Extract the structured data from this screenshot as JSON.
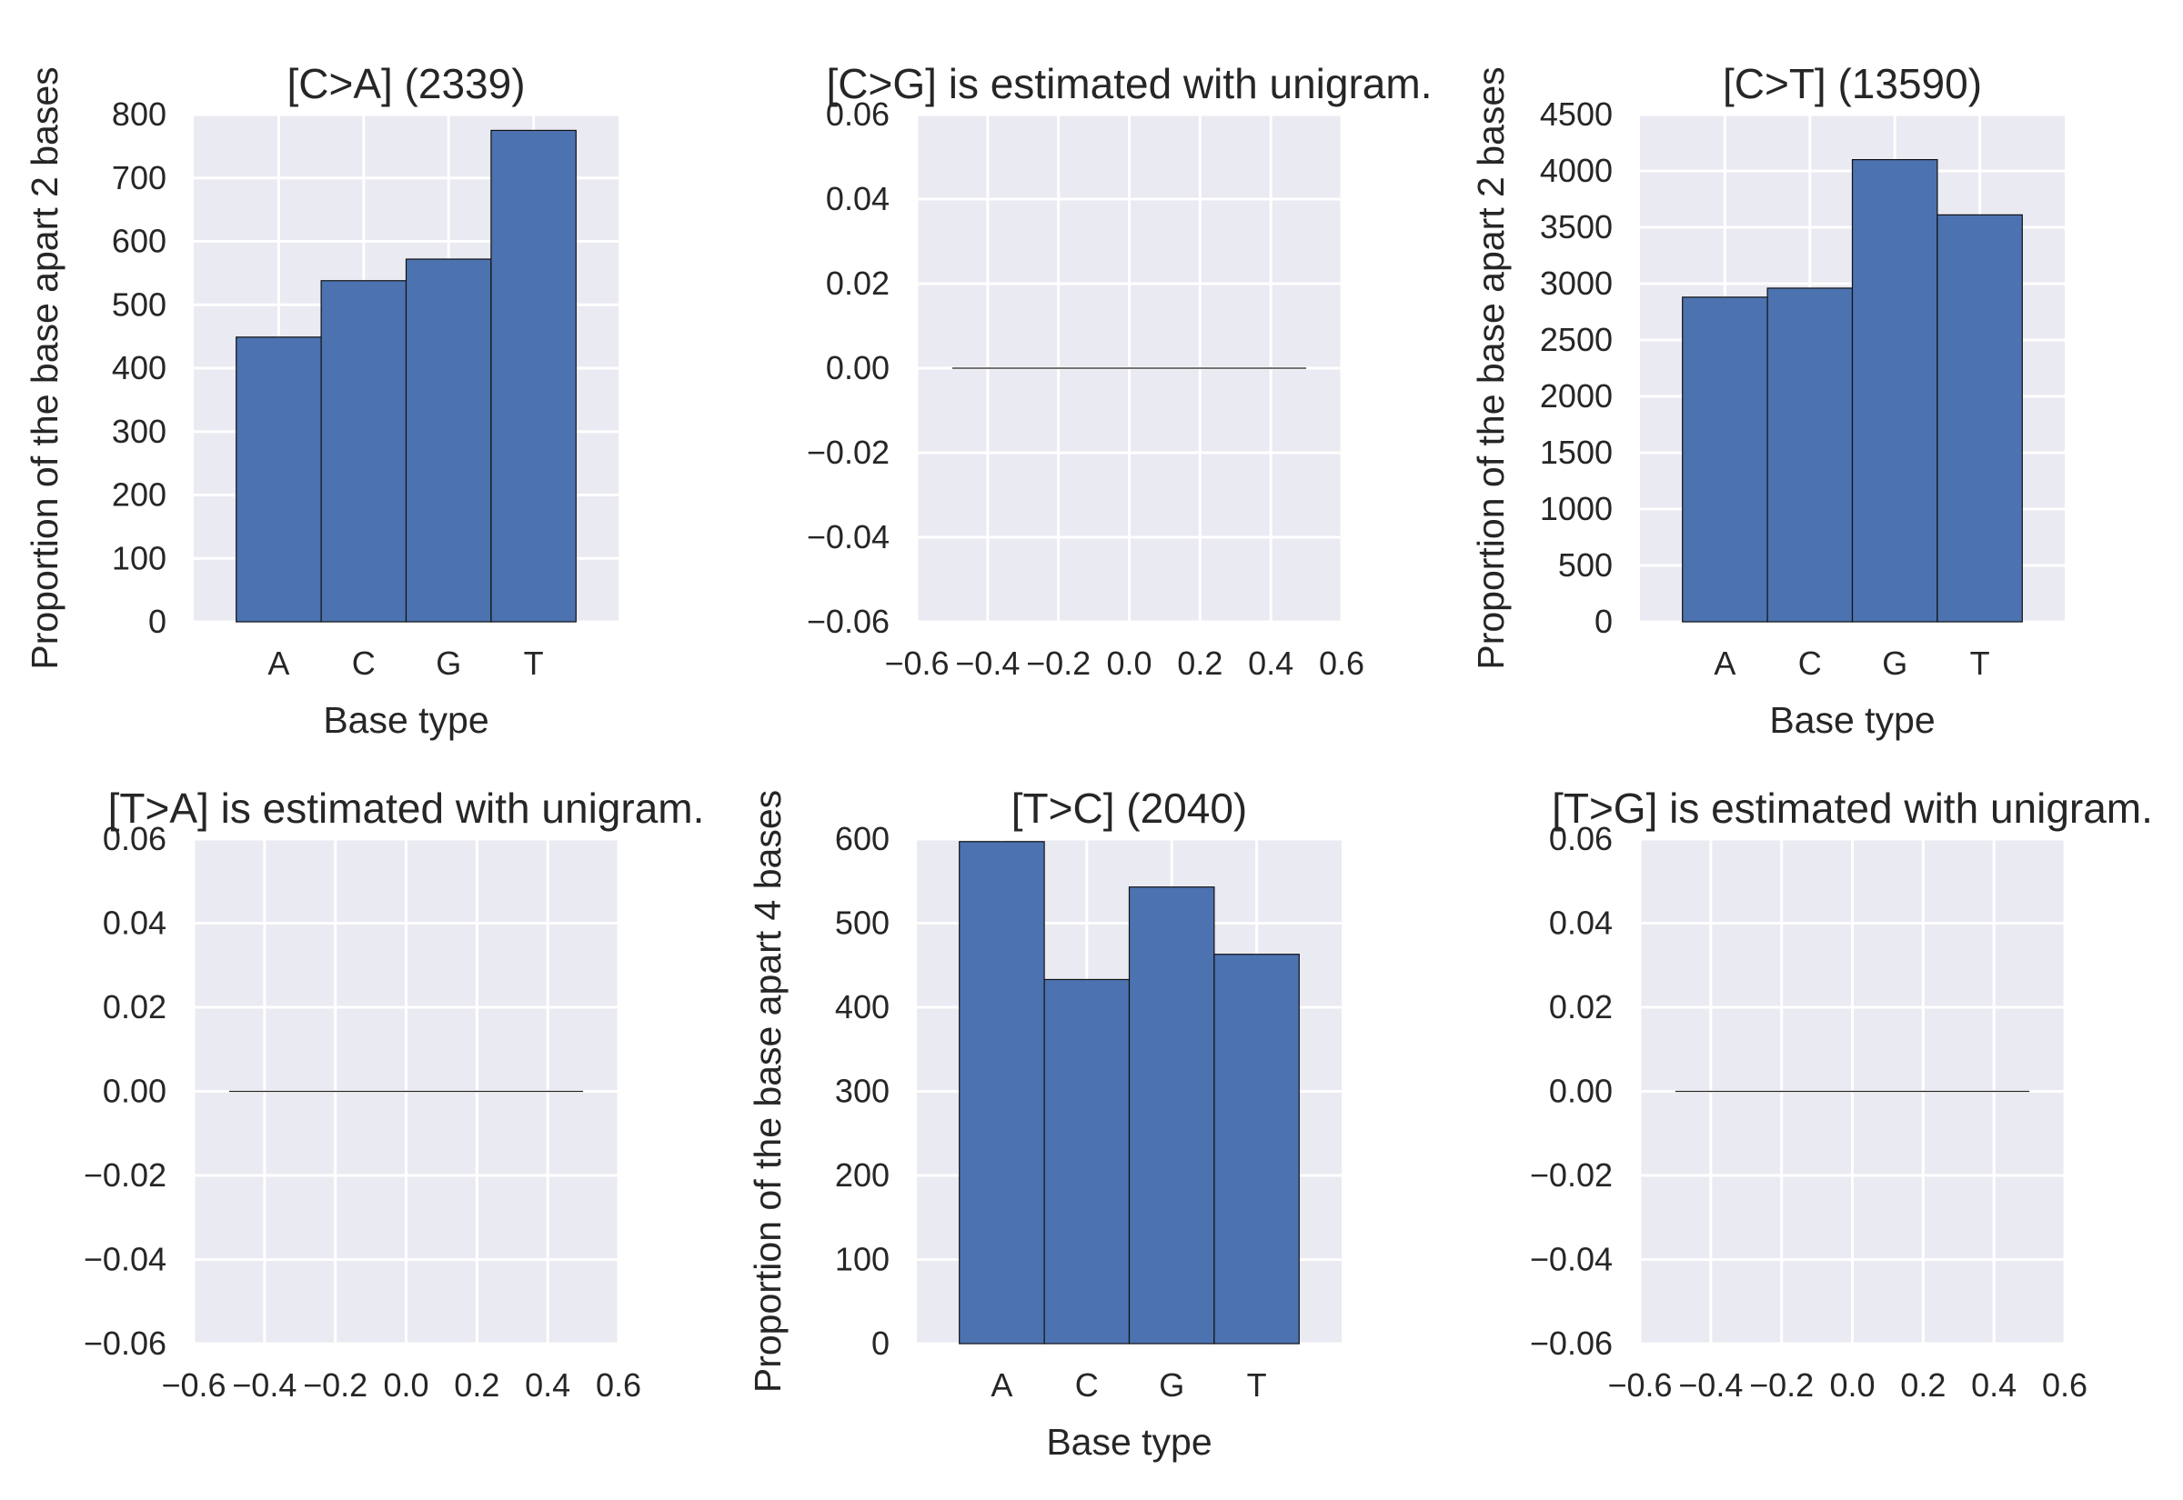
{
  "chart_data": [
    {
      "type": "bar",
      "title": "[C>A] (2339)",
      "categories": [
        "A",
        "C",
        "G",
        "T"
      ],
      "values": [
        449,
        538,
        572,
        775
      ],
      "xlabel": "Base type",
      "ylabel": "Proportion of the base apart 2 bases",
      "ylim": [
        0,
        800
      ],
      "yticks": [
        "0",
        "100",
        "200",
        "300",
        "400",
        "500",
        "600",
        "700",
        "800"
      ],
      "grid": true
    },
    {
      "type": "line",
      "title": "[C>G] is estimated with unigram.",
      "x": [
        -0.5,
        0.5
      ],
      "y": [
        0,
        0
      ],
      "xlim": [
        -0.6,
        0.6
      ],
      "ylim": [
        -0.06,
        0.06
      ],
      "xticks": [
        "−0.6",
        "−0.4",
        "−0.2",
        "0.0",
        "0.2",
        "0.4",
        "0.6"
      ],
      "yticks": [
        "−0.06",
        "−0.04",
        "−0.02",
        "0.00",
        "0.02",
        "0.04",
        "0.06"
      ],
      "xlabel": "",
      "ylabel": "",
      "grid": true
    },
    {
      "type": "bar",
      "title": "[C>T] (13590)",
      "categories": [
        "A",
        "C",
        "G",
        "T"
      ],
      "values": [
        2880,
        2960,
        4100,
        3610
      ],
      "xlabel": "Base type",
      "ylabel": "Proportion of the base apart 2 bases",
      "ylim": [
        0,
        4500
      ],
      "yticks": [
        "0",
        "500",
        "1000",
        "1500",
        "2000",
        "2500",
        "3000",
        "3500",
        "4000",
        "4500"
      ],
      "grid": true
    },
    {
      "type": "line",
      "title": "[T>A] is estimated with unigram.",
      "x": [
        -0.5,
        0.5
      ],
      "y": [
        0,
        0
      ],
      "xlim": [
        -0.6,
        0.6
      ],
      "ylim": [
        -0.06,
        0.06
      ],
      "xticks": [
        "−0.6",
        "−0.4",
        "−0.2",
        "0.0",
        "0.2",
        "0.4",
        "0.6"
      ],
      "yticks": [
        "−0.06",
        "−0.04",
        "−0.02",
        "0.00",
        "0.02",
        "0.04",
        "0.06"
      ],
      "xlabel": "",
      "ylabel": "",
      "grid": true
    },
    {
      "type": "bar",
      "title": "[T>C] (2040)",
      "categories": [
        "A",
        "C",
        "G",
        "T"
      ],
      "values": [
        597,
        433,
        543,
        463
      ],
      "xlabel": "Base type",
      "ylabel": "Proportion of the base apart 4 bases",
      "ylim": [
        0,
        600
      ],
      "yticks": [
        "0",
        "100",
        "200",
        "300",
        "400",
        "500",
        "600"
      ],
      "grid": true
    },
    {
      "type": "line",
      "title": "[T>G] is estimated with unigram.",
      "x": [
        -0.5,
        0.5
      ],
      "y": [
        0,
        0
      ],
      "xlim": [
        -0.6,
        0.6
      ],
      "ylim": [
        -0.06,
        0.06
      ],
      "xticks": [
        "−0.6",
        "−0.4",
        "−0.2",
        "0.0",
        "0.2",
        "0.4",
        "0.6"
      ],
      "yticks": [
        "−0.06",
        "−0.04",
        "−0.02",
        "0.00",
        "0.02",
        "0.04",
        "0.06"
      ],
      "xlabel": "",
      "ylabel": "",
      "grid": true
    }
  ],
  "colors": {
    "bar_fill": "#4c72b0",
    "panel_background": "#eaeaf2",
    "grid": "#ffffff"
  }
}
